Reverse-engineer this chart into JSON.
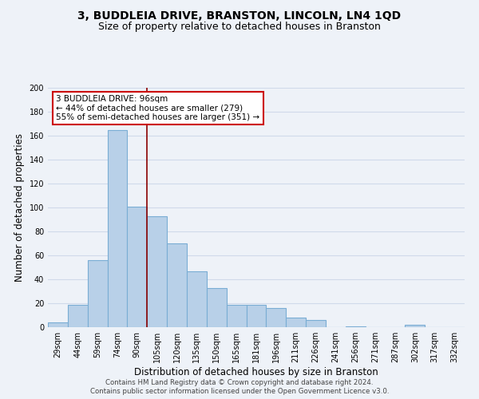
{
  "title": "3, BUDDLEIA DRIVE, BRANSTON, LINCOLN, LN4 1QD",
  "subtitle": "Size of property relative to detached houses in Branston",
  "xlabel": "Distribution of detached houses by size in Branston",
  "ylabel": "Number of detached properties",
  "bar_labels": [
    "29sqm",
    "44sqm",
    "59sqm",
    "74sqm",
    "90sqm",
    "105sqm",
    "120sqm",
    "135sqm",
    "150sqm",
    "165sqm",
    "181sqm",
    "196sqm",
    "211sqm",
    "226sqm",
    "241sqm",
    "256sqm",
    "271sqm",
    "287sqm",
    "302sqm",
    "317sqm",
    "332sqm"
  ],
  "bar_values": [
    4,
    19,
    56,
    165,
    101,
    93,
    70,
    47,
    33,
    19,
    19,
    16,
    8,
    6,
    0,
    1,
    0,
    0,
    2,
    0,
    0
  ],
  "bar_color": "#b8d0e8",
  "bar_edge_color": "#7aadd4",
  "vline_x_idx": 4.5,
  "vline_color": "#8b0000",
  "annotation_text": "3 BUDDLEIA DRIVE: 96sqm\n← 44% of detached houses are smaller (279)\n55% of semi-detached houses are larger (351) →",
  "annotation_box_edge": "#cc0000",
  "annotation_box_face": "#ffffff",
  "ylim": [
    0,
    200
  ],
  "yticks": [
    0,
    20,
    40,
    60,
    80,
    100,
    120,
    140,
    160,
    180,
    200
  ],
  "footer_line1": "Contains HM Land Registry data © Crown copyright and database right 2024.",
  "footer_line2": "Contains public sector information licensed under the Open Government Licence v3.0.",
  "bg_color": "#eef2f8",
  "grid_color": "#d0daea",
  "title_fontsize": 10,
  "subtitle_fontsize": 9,
  "axis_label_fontsize": 8.5,
  "tick_fontsize": 7,
  "annot_fontsize": 7.5,
  "footer_fontsize": 6.2
}
